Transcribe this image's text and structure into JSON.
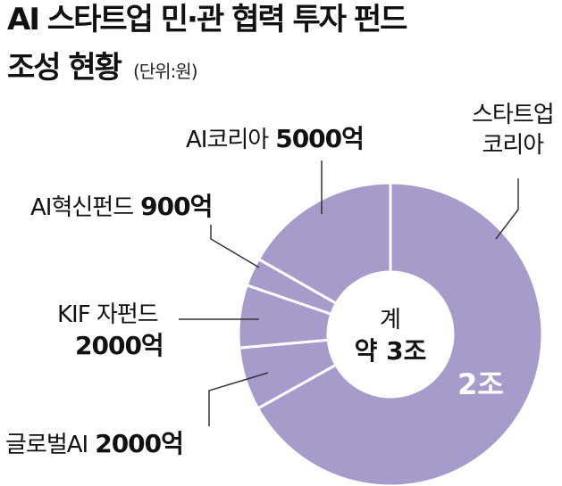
{
  "title": {
    "line1": "AI 스타트업 민·관 협력 투자 펀드",
    "line2": "조성 현황",
    "unit": "(단위:원)"
  },
  "chart_data": {
    "type": "pie",
    "variant": "donut",
    "unit": "원",
    "center": {
      "line1": "계",
      "line2": "약 3조"
    },
    "colors": {
      "slice": "#a69bcb",
      "divider": "#ffffff",
      "leader": "#333333"
    },
    "slices": [
      {
        "name": "스타트업\n코리아",
        "name_lines": [
          "스타트업",
          "코리아"
        ],
        "value": 20000,
        "value_label": "",
        "inner_label": "2조"
      },
      {
        "name": "글로벌AI",
        "value": 2000,
        "value_label": "2000억"
      },
      {
        "name": "KIF 자펀드",
        "value": 2000,
        "value_label": "2000억"
      },
      {
        "name": "AI혁신펀드",
        "value": 900,
        "value_label": "900억"
      },
      {
        "name": "AI코리아",
        "value": 5000,
        "value_label": "5000억"
      }
    ]
  }
}
